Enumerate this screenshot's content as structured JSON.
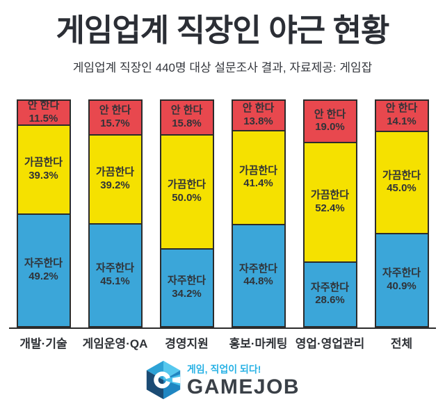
{
  "header": {
    "title": "게임업계 직장인 야근 현황",
    "subtitle": "게임업계 직장인 440명 대상 설문조사 결과, 자료제공: 게임잡"
  },
  "chart_data": {
    "type": "bar",
    "stacked": true,
    "orientation": "vertical",
    "unit": "%",
    "ylim": [
      0,
      100
    ],
    "grid": false,
    "legend": "labels-inside-segments",
    "bar_border_color": "#2B2B2B",
    "categories": [
      "개발·기술",
      "게임운영·QA",
      "경영지원",
      "홍보·마케팅",
      "영업·영업관리",
      "전체"
    ],
    "series": [
      {
        "name": "안 한다",
        "color": "#E8484E",
        "values": [
          11.5,
          15.7,
          15.8,
          13.8,
          19.0,
          14.1
        ]
      },
      {
        "name": "가끔한다",
        "color": "#F5E100",
        "values": [
          39.3,
          39.2,
          50.0,
          41.4,
          52.4,
          45.0
        ]
      },
      {
        "name": "자주한다",
        "color": "#3BA6D9",
        "values": [
          49.2,
          45.1,
          34.2,
          44.8,
          28.6,
          40.9
        ]
      }
    ]
  },
  "footer": {
    "tagline": "게임, 직업이 되다!",
    "wordmark": "GAMEJOB",
    "logo_icon": "gamejob-hexagon-g-icon",
    "brand_colors": {
      "cyan": "#29B2E5",
      "dark_text": "#3A4047",
      "navy": "#1B4B74",
      "light_blue": "#56C8EE"
    }
  }
}
